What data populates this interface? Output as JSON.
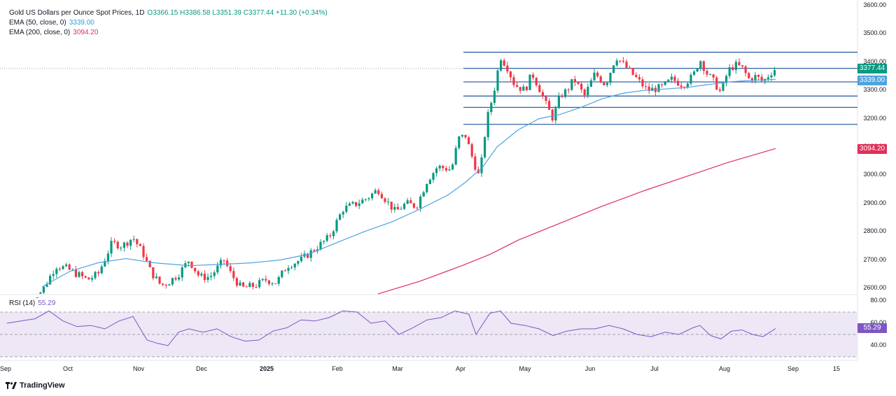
{
  "legend": {
    "title": "Gold US Dollars per Ounce Spot Prices, 1D",
    "ohlc": "O3366.15 H3386.58 L3351.39 C3377.44 +11.30 (+0.34%)",
    "ema50_label": "EMA (50, close, 0)",
    "ema50_value": "3339.00",
    "ema200_label": "EMA (200, close, 0)",
    "ema200_value": "3094.20"
  },
  "rsi_legend": {
    "label": "RSI (14)",
    "value": "55.29"
  },
  "price_axis": {
    "ticks": [
      "3600.00",
      "3500.00",
      "3400.00",
      "3300.00",
      "3200.00",
      "3100.00",
      "3000.00",
      "2900.00",
      "2800.00",
      "2700.00",
      "2600.00"
    ]
  },
  "rsi_axis": {
    "ticks": [
      "80.00",
      "60.00",
      "40.00"
    ]
  },
  "time_axis": {
    "ticks": [
      "Sep",
      "Oct",
      "Nov",
      "Dec",
      "2025",
      "Feb",
      "Mar",
      "Apr",
      "May",
      "Jun",
      "Jul",
      "Aug",
      "Sep",
      "15"
    ]
  },
  "badges": {
    "close": "3377.44",
    "ema50": "3339.00",
    "ema200": "3094.20",
    "rsi": "55.29"
  },
  "colors": {
    "up": "#089981",
    "down": "#f23645",
    "ema50": "#4fa3e0",
    "ema200": "#e0305a",
    "levels": "#1e56a0",
    "rsi": "#7e57c2",
    "rsi_band": "#ede7f6"
  },
  "logo": {
    "text": "TradingView"
  },
  "chart_data": {
    "type": "candlestick",
    "title": "Gold US Dollars per Ounce Spot Prices, 1D",
    "price_range": [
      2580,
      3610
    ],
    "rsi_range": [
      30,
      85
    ],
    "x_months": [
      "Sep",
      "Oct",
      "Nov",
      "Dec",
      "2025",
      "Feb",
      "Mar",
      "Apr",
      "May",
      "Jun",
      "Jul",
      "Aug",
      "Sep",
      "15"
    ],
    "horizontal_levels": [
      3435,
      3378,
      3330,
      3280,
      3240,
      3180
    ],
    "ema50": [
      [
        20,
        2565
      ],
      [
        60,
        2605
      ],
      [
        100,
        2660
      ],
      [
        140,
        2690
      ],
      [
        180,
        2705
      ],
      [
        220,
        2690
      ],
      [
        270,
        2680
      ],
      [
        320,
        2685
      ],
      [
        360,
        2690
      ],
      [
        400,
        2700
      ],
      [
        440,
        2720
      ],
      [
        480,
        2760
      ],
      [
        520,
        2800
      ],
      [
        560,
        2835
      ],
      [
        600,
        2880
      ],
      [
        640,
        2930
      ],
      [
        665,
        2975
      ],
      [
        690,
        3030
      ],
      [
        710,
        3100
      ],
      [
        740,
        3160
      ],
      [
        770,
        3200
      ],
      [
        800,
        3215
      ],
      [
        830,
        3240
      ],
      [
        860,
        3270
      ],
      [
        890,
        3290
      ],
      [
        920,
        3300
      ],
      [
        950,
        3305
      ],
      [
        980,
        3310
      ],
      [
        1010,
        3320
      ],
      [
        1040,
        3330
      ],
      [
        1070,
        3335
      ],
      [
        1108,
        3339
      ]
    ],
    "ema200": [
      [
        540,
        2580
      ],
      [
        600,
        2625
      ],
      [
        660,
        2680
      ],
      [
        700,
        2720
      ],
      [
        740,
        2770
      ],
      [
        800,
        2830
      ],
      [
        860,
        2890
      ],
      [
        920,
        2945
      ],
      [
        980,
        2995
      ],
      [
        1040,
        3045
      ],
      [
        1108,
        3094.2
      ]
    ],
    "rsi": [
      [
        10,
        60
      ],
      [
        30,
        62
      ],
      [
        50,
        64
      ],
      [
        70,
        71
      ],
      [
        90,
        62
      ],
      [
        110,
        57
      ],
      [
        130,
        58
      ],
      [
        150,
        55
      ],
      [
        170,
        62
      ],
      [
        190,
        66
      ],
      [
        210,
        45
      ],
      [
        225,
        42
      ],
      [
        240,
        40
      ],
      [
        255,
        52
      ],
      [
        270,
        55
      ],
      [
        290,
        52
      ],
      [
        310,
        55
      ],
      [
        330,
        48
      ],
      [
        350,
        44
      ],
      [
        370,
        45
      ],
      [
        390,
        53
      ],
      [
        410,
        56
      ],
      [
        430,
        63
      ],
      [
        450,
        62
      ],
      [
        470,
        65
      ],
      [
        490,
        71
      ],
      [
        510,
        70
      ],
      [
        530,
        60
      ],
      [
        550,
        62
      ],
      [
        570,
        50
      ],
      [
        590,
        56
      ],
      [
        610,
        63
      ],
      [
        630,
        65
      ],
      [
        650,
        71
      ],
      [
        670,
        68
      ],
      [
        680,
        50
      ],
      [
        700,
        69
      ],
      [
        715,
        71
      ],
      [
        730,
        60
      ],
      [
        750,
        58
      ],
      [
        770,
        55
      ],
      [
        790,
        49
      ],
      [
        810,
        53
      ],
      [
        830,
        55
      ],
      [
        850,
        55
      ],
      [
        870,
        58
      ],
      [
        890,
        55
      ],
      [
        910,
        50
      ],
      [
        930,
        48
      ],
      [
        950,
        52
      ],
      [
        970,
        50
      ],
      [
        990,
        56
      ],
      [
        1000,
        58
      ],
      [
        1015,
        49
      ],
      [
        1030,
        46
      ],
      [
        1045,
        53
      ],
      [
        1060,
        54
      ],
      [
        1075,
        50
      ],
      [
        1090,
        48
      ],
      [
        1108,
        55.29
      ]
    ]
  }
}
